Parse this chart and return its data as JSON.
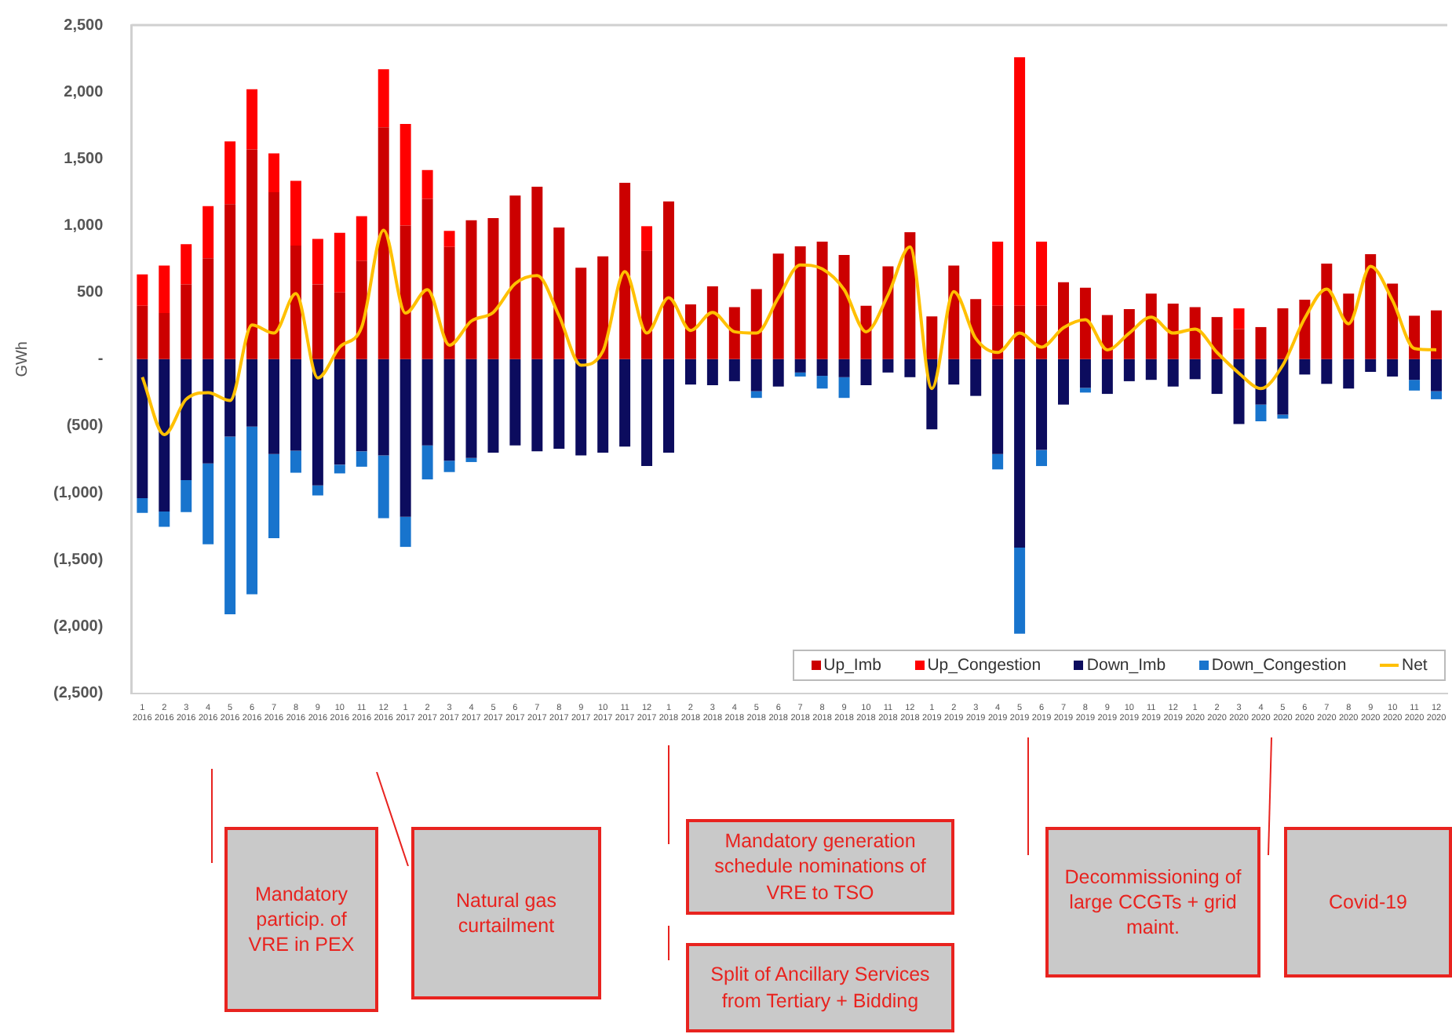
{
  "chart_data": {
    "type": "bar",
    "stacked": true,
    "ylabel": "GWh",
    "categories": [
      "1\n2016",
      "2\n2016",
      "3\n2016",
      "4\n2016",
      "5\n2016",
      "6\n2016",
      "7\n2016",
      "8\n2016",
      "9\n2016",
      "10\n2016",
      "11\n2016",
      "12\n2016",
      "1\n2017",
      "2\n2017",
      "3\n2017",
      "4\n2017",
      "5\n2017",
      "6\n2017",
      "7\n2017",
      "8\n2017",
      "9\n2017",
      "10\n2017",
      "11\n2017",
      "12\n2017",
      "1\n2018",
      "2\n2018",
      "3\n2018",
      "4\n2018",
      "5\n2018",
      "6\n2018",
      "7\n2018",
      "8\n2018",
      "9\n2018",
      "10\n2018",
      "11\n2018",
      "12\n2018",
      "1\n2019",
      "2\n2019",
      "3\n2019",
      "4\n2019",
      "5\n2019",
      "6\n2019",
      "7\n2019",
      "8\n2019",
      "9\n2019",
      "10\n2019",
      "11\n2019",
      "12\n2019",
      "1\n2020",
      "2\n2020",
      "3\n2020",
      "4\n2020",
      "5\n2020",
      "6\n2020",
      "7\n2020",
      "8\n2020",
      "9\n2020",
      "10\n2020",
      "11\n2020",
      "12\n2020"
    ],
    "series": [
      {
        "name": "Up_Imb",
        "color": "#cc0000",
        "values": [
          400,
          345,
          560,
          755,
          1160,
          1570,
          1250,
          850,
          560,
          500,
          735,
          1735,
          1000,
          1200,
          840,
          1040,
          1055,
          1225,
          1290,
          985,
          685,
          770,
          1320,
          810,
          1180,
          410,
          545,
          390,
          525,
          790,
          845,
          880,
          780,
          400,
          695,
          950,
          320,
          700,
          450,
          400,
          400,
          400,
          575,
          535,
          330,
          375,
          490,
          415,
          390,
          315,
          225,
          240,
          380,
          445,
          715,
          490,
          785,
          565,
          325,
          365
        ]
      },
      {
        "name": "Up_Congestion",
        "color": "#ff0000",
        "values": [
          235,
          355,
          300,
          390,
          470,
          450,
          290,
          485,
          340,
          445,
          335,
          435,
          760,
          215,
          120,
          0,
          0,
          0,
          0,
          0,
          0,
          0,
          0,
          185,
          0,
          0,
          0,
          0,
          0,
          0,
          0,
          0,
          0,
          0,
          0,
          0,
          0,
          0,
          0,
          480,
          1860,
          480,
          0,
          0,
          0,
          0,
          0,
          0,
          0,
          0,
          155,
          0,
          0,
          0,
          0,
          0,
          0,
          0,
          0,
          0
        ]
      },
      {
        "name": "Down_Imb",
        "color": "#0c0c5e",
        "values": [
          -1040,
          -1140,
          -905,
          -780,
          -580,
          -505,
          -710,
          -685,
          -945,
          -790,
          -690,
          -720,
          -1180,
          -645,
          -760,
          -740,
          -700,
          -645,
          -690,
          -670,
          -720,
          -700,
          -655,
          -800,
          -700,
          -190,
          -195,
          -165,
          -240,
          -205,
          -100,
          -125,
          -135,
          -195,
          -100,
          -135,
          -525,
          -190,
          -275,
          -710,
          -1410,
          -680,
          -340,
          -215,
          -260,
          -165,
          -155,
          -205,
          -150,
          -260,
          -485,
          -340,
          -415,
          -115,
          -185,
          -220,
          -95,
          -130,
          -155,
          -240
        ]
      },
      {
        "name": "Down_Congestion",
        "color": "#1874cd",
        "values": [
          -110,
          -115,
          -240,
          -605,
          -1330,
          -1255,
          -630,
          -165,
          -75,
          -65,
          -115,
          -470,
          -225,
          -255,
          -85,
          -30,
          0,
          0,
          0,
          0,
          0,
          0,
          0,
          0,
          0,
          0,
          0,
          0,
          -50,
          0,
          -30,
          -95,
          -155,
          0,
          0,
          0,
          0,
          0,
          0,
          -115,
          -645,
          -120,
          0,
          -35,
          0,
          0,
          0,
          0,
          0,
          0,
          0,
          -125,
          -30,
          0,
          0,
          0,
          0,
          0,
          -80,
          -60
        ]
      },
      {
        "name": "Net",
        "type": "line",
        "color": "#ffc000",
        "values": [
          -135,
          -565,
          -300,
          -250,
          -310,
          255,
          195,
          490,
          -140,
          90,
          240,
          965,
          345,
          520,
          105,
          285,
          350,
          565,
          625,
          325,
          -45,
          60,
          655,
          195,
          460,
          215,
          350,
          205,
          195,
          460,
          705,
          675,
          520,
          205,
          480,
          840,
          -220,
          505,
          155,
          50,
          195,
          90,
          235,
          295,
          70,
          195,
          315,
          195,
          225,
          50,
          -105,
          -220,
          -45,
          305,
          525,
          265,
          695,
          440,
          80,
          70
        ]
      }
    ],
    "ylim": [
      -2500,
      2500
    ],
    "yticks": [
      {
        "value": -2500,
        "label": "(2,500)"
      },
      {
        "value": -2000,
        "label": "(2,000)"
      },
      {
        "value": -1500,
        "label": "(1,500)"
      },
      {
        "value": -1000,
        "label": "(1,000)"
      },
      {
        "value": -500,
        "label": "(500)"
      },
      {
        "value": 0,
        "label": "-"
      },
      {
        "value": 500,
        "label": "500"
      },
      {
        "value": 1000,
        "label": "1,000"
      },
      {
        "value": 1500,
        "label": "1,500"
      },
      {
        "value": 2000,
        "label": "2,000"
      },
      {
        "value": 2500,
        "label": "2,500"
      }
    ],
    "grid": false,
    "legend": "bottom right",
    "marker": "none",
    "annotations": [
      "Mandatory particip. of VRE in PEX",
      "Natural gas curtailment",
      "Mandatory generation schedule nominations of VRE to TSO",
      "Split of Ancillary Services from Tertiary + Bidding",
      "Decommissioning of large CCGTs + grid maint.",
      "Covid-19"
    ]
  }
}
